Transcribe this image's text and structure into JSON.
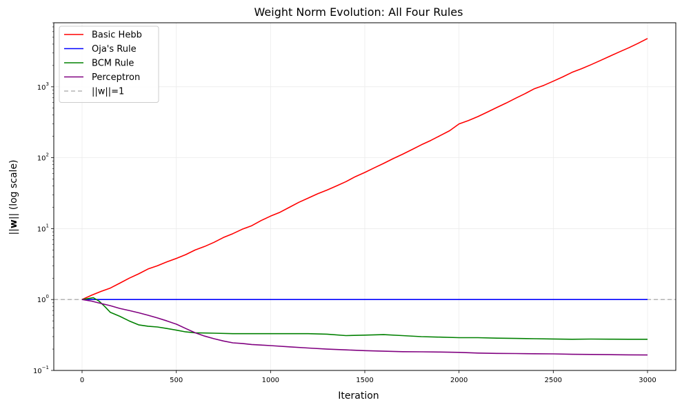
{
  "chart_data": {
    "type": "line",
    "title": "Weight Norm Evolution: All Four Rules",
    "xlabel": "Iteration",
    "ylabel": "||w|| (log scale)",
    "ylabel_parts": {
      "pre": "||",
      "bold": "w",
      "post": "|| (log scale)"
    },
    "xlim": [
      -150,
      3150
    ],
    "ylim": [
      0.1,
      8000
    ],
    "yscale": "log",
    "grid": true,
    "legend_position": "top-left",
    "x_ticks": [
      0,
      500,
      1000,
      1500,
      2000,
      2500,
      3000
    ],
    "y_ticks": [
      {
        "value": 0.1,
        "base": "10",
        "exp": "−1"
      },
      {
        "value": 1,
        "base": "10",
        "exp": "0"
      },
      {
        "value": 10,
        "base": "10",
        "exp": "1"
      },
      {
        "value": 100,
        "base": "10",
        "exp": "2"
      },
      {
        "value": 1000,
        "base": "10",
        "exp": "3"
      }
    ],
    "series": [
      {
        "name": "Basic Hebb",
        "color": "#ff0000",
        "points": [
          [
            0,
            1.0
          ],
          [
            50,
            1.15
          ],
          [
            100,
            1.3
          ],
          [
            150,
            1.45
          ],
          [
            200,
            1.7
          ],
          [
            250,
            2.0
          ],
          [
            300,
            2.3
          ],
          [
            350,
            2.7
          ],
          [
            400,
            3.0
          ],
          [
            450,
            3.4
          ],
          [
            500,
            3.8
          ],
          [
            550,
            4.3
          ],
          [
            600,
            5.0
          ],
          [
            650,
            5.6
          ],
          [
            700,
            6.4
          ],
          [
            750,
            7.5
          ],
          [
            800,
            8.5
          ],
          [
            850,
            9.8
          ],
          [
            900,
            11.0
          ],
          [
            950,
            13.0
          ],
          [
            1000,
            15.0
          ],
          [
            1050,
            17.0
          ],
          [
            1100,
            20.0
          ],
          [
            1150,
            23.5
          ],
          [
            1200,
            27.0
          ],
          [
            1250,
            31.0
          ],
          [
            1300,
            35.0
          ],
          [
            1350,
            40.0
          ],
          [
            1400,
            46.0
          ],
          [
            1450,
            54.0
          ],
          [
            1500,
            62.0
          ],
          [
            1550,
            72.0
          ],
          [
            1600,
            83.0
          ],
          [
            1650,
            97.0
          ],
          [
            1700,
            112.0
          ],
          [
            1750,
            130.0
          ],
          [
            1800,
            152.0
          ],
          [
            1850,
            175.0
          ],
          [
            1900,
            205.0
          ],
          [
            1950,
            240.0
          ],
          [
            2000,
            300.0
          ],
          [
            2050,
            335.0
          ],
          [
            2100,
            380.0
          ],
          [
            2150,
            440.0
          ],
          [
            2200,
            510.0
          ],
          [
            2250,
            590.0
          ],
          [
            2300,
            690.0
          ],
          [
            2350,
            800.0
          ],
          [
            2400,
            940.0
          ],
          [
            2450,
            1050.0
          ],
          [
            2500,
            1200.0
          ],
          [
            2550,
            1380.0
          ],
          [
            2600,
            1600.0
          ],
          [
            2650,
            1800.0
          ],
          [
            2700,
            2050.0
          ],
          [
            2750,
            2350.0
          ],
          [
            2800,
            2700.0
          ],
          [
            2850,
            3100.0
          ],
          [
            2900,
            3550.0
          ],
          [
            2950,
            4100.0
          ],
          [
            3000,
            4800.0
          ]
        ]
      },
      {
        "name": "Oja's Rule",
        "color": "#0000ff",
        "points": [
          [
            0,
            1.0
          ],
          [
            500,
            1.0
          ],
          [
            1000,
            1.0
          ],
          [
            1500,
            1.0
          ],
          [
            2000,
            1.0
          ],
          [
            2500,
            1.0
          ],
          [
            3000,
            1.0
          ]
        ]
      },
      {
        "name": "BCM Rule",
        "color": "#008000",
        "points": [
          [
            0,
            1.0
          ],
          [
            30,
            1.03
          ],
          [
            60,
            1.06
          ],
          [
            90,
            0.95
          ],
          [
            120,
            0.8
          ],
          [
            150,
            0.66
          ],
          [
            200,
            0.58
          ],
          [
            250,
            0.5
          ],
          [
            300,
            0.44
          ],
          [
            350,
            0.42
          ],
          [
            400,
            0.41
          ],
          [
            450,
            0.39
          ],
          [
            500,
            0.37
          ],
          [
            550,
            0.35
          ],
          [
            600,
            0.34
          ],
          [
            700,
            0.335
          ],
          [
            800,
            0.33
          ],
          [
            900,
            0.33
          ],
          [
            1000,
            0.33
          ],
          [
            1100,
            0.33
          ],
          [
            1200,
            0.33
          ],
          [
            1300,
            0.325
          ],
          [
            1400,
            0.31
          ],
          [
            1500,
            0.315
          ],
          [
            1600,
            0.32
          ],
          [
            1700,
            0.31
          ],
          [
            1800,
            0.3
          ],
          [
            1900,
            0.295
          ],
          [
            2000,
            0.29
          ],
          [
            2100,
            0.29
          ],
          [
            2200,
            0.285
          ],
          [
            2300,
            0.283
          ],
          [
            2400,
            0.28
          ],
          [
            2500,
            0.278
          ],
          [
            2600,
            0.275
          ],
          [
            2700,
            0.277
          ],
          [
            2800,
            0.276
          ],
          [
            2900,
            0.275
          ],
          [
            3000,
            0.275
          ]
        ]
      },
      {
        "name": "Perceptron",
        "color": "#800080",
        "points": [
          [
            0,
            1.0
          ],
          [
            50,
            0.95
          ],
          [
            100,
            0.88
          ],
          [
            150,
            0.82
          ],
          [
            200,
            0.75
          ],
          [
            250,
            0.7
          ],
          [
            300,
            0.65
          ],
          [
            350,
            0.6
          ],
          [
            400,
            0.55
          ],
          [
            450,
            0.5
          ],
          [
            500,
            0.45
          ],
          [
            550,
            0.39
          ],
          [
            600,
            0.34
          ],
          [
            650,
            0.305
          ],
          [
            700,
            0.28
          ],
          [
            750,
            0.26
          ],
          [
            800,
            0.245
          ],
          [
            850,
            0.24
          ],
          [
            900,
            0.232
          ],
          [
            950,
            0.228
          ],
          [
            1000,
            0.224
          ],
          [
            1100,
            0.215
          ],
          [
            1200,
            0.207
          ],
          [
            1300,
            0.2
          ],
          [
            1400,
            0.195
          ],
          [
            1500,
            0.19
          ],
          [
            1600,
            0.187
          ],
          [
            1700,
            0.184
          ],
          [
            1800,
            0.183
          ],
          [
            1900,
            0.182
          ],
          [
            2000,
            0.18
          ],
          [
            2100,
            0.176
          ],
          [
            2200,
            0.174
          ],
          [
            2300,
            0.173
          ],
          [
            2400,
            0.172
          ],
          [
            2500,
            0.171
          ],
          [
            2600,
            0.169
          ],
          [
            2700,
            0.168
          ],
          [
            2800,
            0.167
          ],
          [
            2900,
            0.166
          ],
          [
            3000,
            0.165
          ]
        ]
      }
    ],
    "reference_line": {
      "name": "||w||=1",
      "value": 1,
      "color": "#b3b3b3",
      "style": "dashed"
    }
  }
}
